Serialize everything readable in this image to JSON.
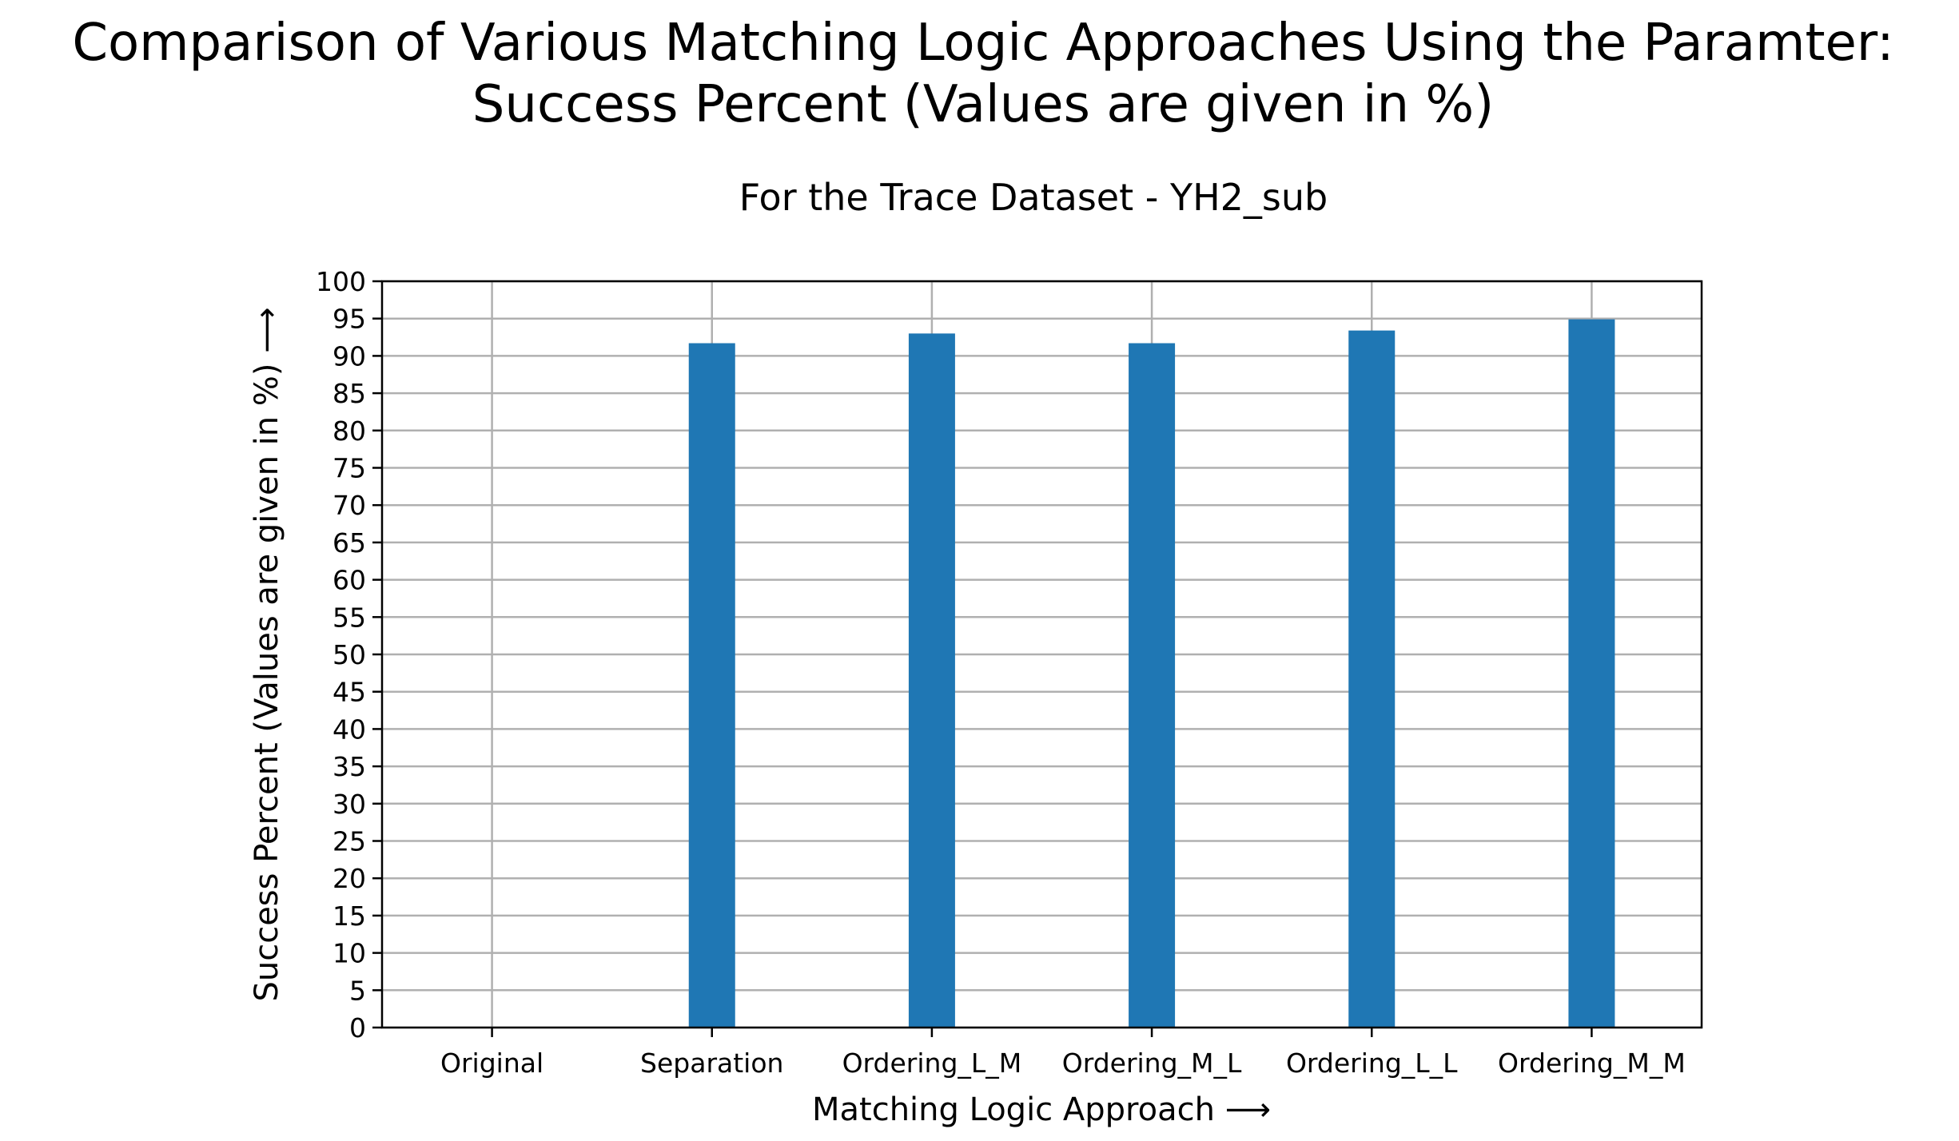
{
  "chart_data": {
    "type": "bar",
    "title_lines": [
      "Comparison of Various Matching Logic Approaches Using the Paramter:",
      "Success Percent (Values are given in %)"
    ],
    "subtitle": "For the Trace Dataset - YH2_sub",
    "xlabel": "Matching Logic Approach ⟶",
    "ylabel": "Success Percent (Values are given in %) ⟶",
    "categories": [
      "Original",
      "Separation",
      "Ordering_L_M",
      "Ordering_M_L",
      "Ordering_L_L",
      "Ordering_M_M"
    ],
    "values": [
      0,
      91.7,
      93.0,
      91.7,
      93.4,
      94.9
    ],
    "ylim": [
      0,
      100
    ],
    "yticks": [
      0,
      5,
      10,
      15,
      20,
      25,
      30,
      35,
      40,
      45,
      50,
      55,
      60,
      65,
      70,
      75,
      80,
      85,
      90,
      95,
      100
    ],
    "grid": true,
    "bar_color": "#1f77b4",
    "grid_color": "#b0b0b0"
  }
}
